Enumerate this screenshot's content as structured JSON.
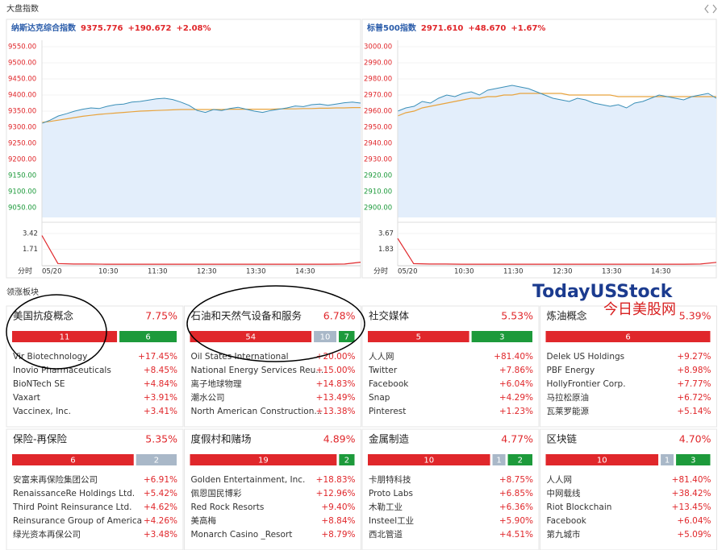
{
  "header": {
    "title": "大盘指数"
  },
  "indices": [
    {
      "name": "纳斯达克综合指数",
      "price": "9375.776",
      "change": "+190.672",
      "pct": "+2.08%",
      "ylim": [
        9050,
        9550
      ],
      "yticks": [
        {
          "value": 9550,
          "label": "9550.00"
        },
        {
          "value": 9500,
          "label": "9500.00"
        },
        {
          "value": 9450,
          "label": "9450.00"
        },
        {
          "value": 9400,
          "label": "9400.00"
        },
        {
          "value": 9350,
          "label": "9350.00"
        },
        {
          "value": 9300,
          "label": "9300.00"
        },
        {
          "value": 9250,
          "label": "9250.00"
        },
        {
          "value": 9200,
          "label": "9200.00"
        },
        {
          "value": 9150,
          "label": "9150.00"
        },
        {
          "value": 9100,
          "label": "9100.00"
        },
        {
          "value": 9050,
          "label": "9050.00"
        }
      ],
      "values": [
        9312,
        9322,
        9335,
        9342,
        9350,
        9356,
        9360,
        9358,
        9365,
        9370,
        9372,
        9378,
        9380,
        9384,
        9388,
        9390,
        9386,
        9378,
        9368,
        9352,
        9346,
        9355,
        9352,
        9358,
        9362,
        9356,
        9350,
        9346,
        9352,
        9356,
        9360,
        9366,
        9364,
        9370,
        9372,
        9368,
        9372,
        9376,
        9378,
        9375
      ],
      "avg": [
        9315,
        9318,
        9322,
        9326,
        9330,
        9334,
        9337,
        9340,
        9342,
        9344,
        9346,
        9348,
        9350,
        9351,
        9352,
        9353,
        9354,
        9355,
        9355,
        9355,
        9355,
        9355,
        9355,
        9356,
        9356,
        9356,
        9356,
        9356,
        9356,
        9357,
        9357,
        9357,
        9358,
        9358,
        9359,
        9359,
        9360,
        9360,
        9361,
        9361
      ],
      "volume": {
        "ylim": [
          0,
          3.42
        ],
        "yticks": [
          3.42,
          1.71
        ],
        "values": [
          3.2,
          0.15,
          0.1,
          0.1,
          0.08,
          0.08,
          0.08,
          0.08,
          0.08,
          0.08,
          0.08,
          0.08,
          0.08,
          0.08,
          0.08,
          0.08,
          0.08,
          0.08,
          0.08,
          0.1,
          0.3
        ]
      },
      "xlabel": "分时",
      "xticks": [
        "05/20",
        "10:30",
        "11:30",
        "12:30",
        "13:30",
        "14:30"
      ]
    },
    {
      "name": "标普500指数",
      "price": "2971.610",
      "change": "+48.670",
      "pct": "+1.67%",
      "ylim": [
        2900,
        3000
      ],
      "yticks": [
        {
          "value": 3000,
          "label": "3000.00"
        },
        {
          "value": 2990,
          "label": "2990.00"
        },
        {
          "value": 2980,
          "label": "2980.00"
        },
        {
          "value": 2970,
          "label": "2970.00"
        },
        {
          "value": 2960,
          "label": "2960.00"
        },
        {
          "value": 2950,
          "label": "2950.00"
        },
        {
          "value": 2940,
          "label": "2940.00"
        },
        {
          "value": 2930,
          "label": "2930.00"
        },
        {
          "value": 2920,
          "label": "2920.00"
        },
        {
          "value": 2910,
          "label": "2910.00"
        },
        {
          "value": 2900,
          "label": "2900.00"
        }
      ],
      "values": [
        2960,
        2962,
        2963,
        2966,
        2965,
        2968,
        2970,
        2969,
        2971,
        2972,
        2970,
        2973,
        2974,
        2975,
        2976,
        2975,
        2974,
        2972,
        2970,
        2968,
        2967,
        2966,
        2968,
        2967,
        2965,
        2964,
        2963,
        2964,
        2962,
        2965,
        2966,
        2968,
        2970,
        2969,
        2968,
        2967,
        2969,
        2970,
        2971,
        2968
      ],
      "avg": [
        2957,
        2959,
        2960,
        2962,
        2963,
        2964,
        2965,
        2966,
        2967,
        2968,
        2968,
        2969,
        2969,
        2970,
        2970,
        2971,
        2971,
        2971,
        2971,
        2971,
        2971,
        2970,
        2970,
        2970,
        2970,
        2970,
        2970,
        2969,
        2969,
        2969,
        2969,
        2969,
        2969,
        2969,
        2969,
        2969,
        2969,
        2969,
        2969,
        2969
      ],
      "volume": {
        "ylim": [
          0,
          3.67
        ],
        "yticks": [
          3.67,
          1.83
        ],
        "values": [
          3.1,
          0.15,
          0.1,
          0.1,
          0.08,
          0.08,
          0.08,
          0.08,
          0.08,
          0.08,
          0.08,
          0.08,
          0.08,
          0.08,
          0.08,
          0.08,
          0.08,
          0.08,
          0.08,
          0.1,
          0.3
        ]
      },
      "xlabel": "分时",
      "xticks": [
        "05/20",
        "10:30",
        "11:30",
        "12:30",
        "13:30",
        "14:30"
      ]
    }
  ],
  "sectors": {
    "title": "领涨板块",
    "items": [
      {
        "name": "美国抗疫概念",
        "pct": "7.75%",
        "up": 11,
        "down": 6,
        "stocks": [
          [
            "Vir Biotechnology",
            "+17.45%"
          ],
          [
            "Inovio Pharmaceuticals",
            "+8.45%"
          ],
          [
            "BioNTech SE",
            "+4.84%"
          ],
          [
            "Vaxart",
            "+3.91%"
          ],
          [
            "Vaccinex, Inc.",
            "+3.41%"
          ]
        ]
      },
      {
        "name": "石油和天然气设备和服务",
        "pct": "6.78%",
        "up": 54,
        "flat": 10,
        "down": 7,
        "stocks": [
          [
            "Oil States International",
            "+20.00%"
          ],
          [
            "National Energy Services Reu...",
            "+15.00%"
          ],
          [
            "离子地球物理",
            "+14.83%"
          ],
          [
            "潮水公司",
            "+13.49%"
          ],
          [
            "North American Construction...",
            "+13.38%"
          ]
        ]
      },
      {
        "name": "社交媒体",
        "pct": "5.53%",
        "up": 5,
        "down": 3,
        "stocks": [
          [
            "人人网",
            "+81.40%"
          ],
          [
            "Twitter",
            "+7.86%"
          ],
          [
            "Facebook",
            "+6.04%"
          ],
          [
            "Snap",
            "+4.29%"
          ],
          [
            "Pinterest",
            "+1.23%"
          ]
        ]
      },
      {
        "name": "炼油概念",
        "pct": "5.39%",
        "up": 6,
        "stocks": [
          [
            "Delek US Holdings",
            "+9.27%"
          ],
          [
            "PBF Energy",
            "+8.98%"
          ],
          [
            "HollyFrontier Corp.",
            "+7.77%"
          ],
          [
            "马拉松原油",
            "+6.72%"
          ],
          [
            "瓦莱罗能源",
            "+5.14%"
          ]
        ]
      },
      {
        "name": "保险-再保险",
        "pct": "5.35%",
        "up": 6,
        "flat": 2,
        "stocks": [
          [
            "安富来再保险集团公司",
            "+6.91%"
          ],
          [
            "RenaissanceRe Holdings Ltd.",
            "+5.42%"
          ],
          [
            "Third Point Reinsurance Ltd.",
            "+4.62%"
          ],
          [
            "Reinsurance Group of America",
            "+4.26%"
          ],
          [
            "绿光资本再保公司",
            "+3.48%"
          ]
        ]
      },
      {
        "name": "度假村和赌场",
        "pct": "4.89%",
        "up": 19,
        "down": 2,
        "stocks": [
          [
            "Golden Entertainment, Inc.",
            "+18.83%"
          ],
          [
            "佩恩国民博彩",
            "+12.96%"
          ],
          [
            "Red Rock Resorts",
            "+9.40%"
          ],
          [
            "美高梅",
            "+8.84%"
          ],
          [
            "Monarch Casino _Resort",
            "+8.79%"
          ]
        ]
      },
      {
        "name": "金属制造",
        "pct": "4.77%",
        "up": 10,
        "flat": 1,
        "down": 2,
        "stocks": [
          [
            "卡朋特科技",
            "+8.75%"
          ],
          [
            "Proto Labs",
            "+6.85%"
          ],
          [
            "木勒工业",
            "+6.36%"
          ],
          [
            "Insteel工业",
            "+5.90%"
          ],
          [
            "西北管道",
            "+4.51%"
          ]
        ]
      },
      {
        "name": "区块链",
        "pct": "4.70%",
        "up": 10,
        "flat": 1,
        "down": 3,
        "stocks": [
          [
            "人人网",
            "+81.40%"
          ],
          [
            "中网载线",
            "+38.42%"
          ],
          [
            "Riot Blockchain",
            "+13.45%"
          ],
          [
            "Facebook",
            "+6.04%"
          ],
          [
            "第九城市",
            "+5.09%"
          ]
        ]
      }
    ]
  },
  "watermark": {
    "en": "TodayUSStock",
    "cn": "今日美股网"
  }
}
